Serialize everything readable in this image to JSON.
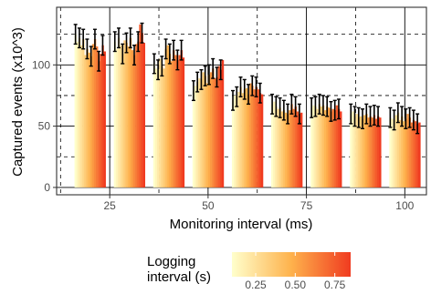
{
  "chart_data": {
    "type": "bar",
    "title": "",
    "xlabel": "Monitoring interval (ms)",
    "ylabel": "Captured events (x10^3)",
    "x_ticks": [
      25,
      50,
      75,
      100
    ],
    "y_ticks": [
      0,
      50,
      100
    ],
    "xlim": [
      11.5,
      105.5
    ],
    "ylim": [
      -6,
      147
    ],
    "minor_x": [
      12.5,
      37.5,
      62.5,
      87.5
    ],
    "major_y_grid": [
      0,
      50,
      100
    ],
    "minor_y_grid": [
      25,
      75,
      125
    ],
    "legend": {
      "title_line1": "Logging",
      "title_line2": "interval (s)",
      "ticks": [
        0.25,
        0.5,
        0.75
      ],
      "tick_labels": [
        "0.25",
        "0.50",
        "0.75"
      ],
      "range": [
        0.1,
        0.85
      ],
      "color_low": "#FFFFCC",
      "color_high": "#F03B20"
    },
    "groups": [
      {
        "x": 20,
        "values": [
          125,
          119,
          122,
          116,
          121,
          108,
          113,
          110,
          107,
          117,
          121,
          115,
          103,
          109,
          116,
          111
        ]
      },
      {
        "x": 30,
        "values": [
          119,
          113,
          122,
          116,
          109,
          120,
          118,
          115,
          122,
          112,
          108,
          117,
          119,
          133,
          126,
          118
        ]
      },
      {
        "x": 40,
        "values": [
          101,
          97,
          96,
          105,
          99,
          97,
          113,
          116,
          109,
          103,
          112,
          108,
          104,
          108,
          112,
          106
        ]
      },
      {
        "x": 50,
        "values": [
          79,
          83,
          86,
          89,
          88,
          94,
          91,
          85,
          92,
          94,
          97,
          89,
          90,
          99,
          96,
          104
        ]
      },
      {
        "x": 60,
        "values": [
          71,
          75,
          74,
          78,
          82,
          77,
          80,
          81,
          76,
          85,
          83,
          80,
          82,
          80,
          77,
          76
        ]
      },
      {
        "x": 70,
        "values": [
          68,
          70,
          66,
          64,
          65,
          62,
          63,
          61,
          60,
          63,
          68,
          64,
          66,
          62,
          60,
          61
        ]
      },
      {
        "x": 80,
        "values": [
          65,
          67,
          66,
          64,
          68,
          66,
          67,
          63,
          66,
          65,
          62,
          64,
          63,
          67,
          64,
          62
        ]
      },
      {
        "x": 90,
        "values": [
          60,
          62,
          58,
          60,
          57,
          58,
          56,
          59,
          60,
          57,
          58,
          57,
          59,
          56,
          58,
          57
        ]
      },
      {
        "x": 100,
        "values": [
          57,
          56,
          55,
          59,
          61,
          55,
          58,
          54,
          56,
          60,
          57,
          53,
          55,
          54,
          52,
          53
        ]
      }
    ],
    "error": 8
  }
}
